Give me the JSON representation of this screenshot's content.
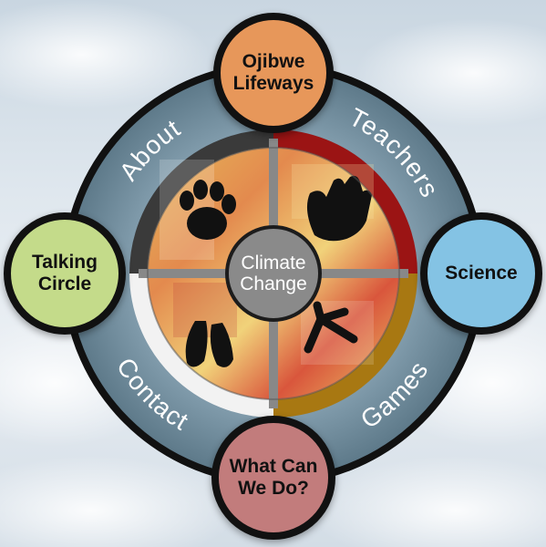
{
  "nav": {
    "top": "Ojibwe\nLifeways",
    "left": "Talking\nCircle",
    "right": "Science",
    "bottom": "What Can\nWe Do?",
    "center": "Climate\nChange"
  },
  "sections": {
    "about": "About",
    "teachers": "Teachers",
    "contact": "Contact",
    "games": "Games"
  },
  "colors": {
    "top": "#e7975a",
    "left": "#c4db8a",
    "right": "#84c3e4",
    "bottom": "#c27c7c",
    "ring": "#6f8c9c",
    "about_arc": "#3a3a3a",
    "teachers_arc": "#9b1414",
    "contact_arc": "#f2f2f2",
    "games_arc": "#a87812"
  },
  "icons": {
    "top_left": "paw-print-icon",
    "top_right": "hand-print-icon",
    "bottom_left": "deer-hoof-icon",
    "bottom_right": "bird-track-icon"
  }
}
